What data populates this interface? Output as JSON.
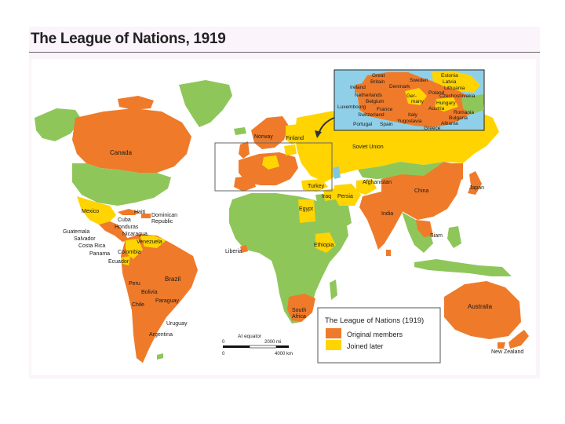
{
  "title": "The League of Nations, 1919",
  "colors": {
    "original": "#ef7a2a",
    "later": "#ffd400",
    "nonmember": "#8fc65a",
    "water": "#ffffff",
    "inset_water": "#8fd0e8",
    "caspian": "#7fc8e0"
  },
  "legend": {
    "title": "The League of Nations (1919)",
    "items": [
      {
        "label": "Original members",
        "color": "#ef7a2a"
      },
      {
        "label": "Joined later",
        "color": "#ffd400"
      }
    ]
  },
  "scale": {
    "note": "At equator",
    "mi_zero": "0",
    "mi_label": "2000 mi",
    "km_zero": "0",
    "km_label": "4000 km"
  },
  "labels": {
    "canada": "Canada",
    "mexico": "Mexico",
    "cuba": "Cuba",
    "haiti": "Haiti",
    "dominican_republic": "Dominican Republic",
    "honduras": "Honduras",
    "guatemala": "Guatemala",
    "salvador": "Salvador",
    "nicaragua": "Nicaragua",
    "costa_rica": "Costa Rica",
    "panama": "Panama",
    "venezuela": "Venezuela",
    "colombia": "Colombia",
    "ecuador": "Ecuador",
    "peru": "Peru",
    "brazil": "Brazil",
    "bolivia": "Bolivia",
    "paraguay": "Paraguay",
    "chile": "Chile",
    "uruguay": "Uruguay",
    "argentina": "Argentina",
    "liberia": "Liberia",
    "norway": "Norway",
    "finland": "Finland",
    "soviet_union": "Soviet Union",
    "turkey": "Turkey",
    "iraq": "Iraq",
    "persia": "Persia",
    "afghanistan": "Afghanistan",
    "egypt": "Egypt",
    "ethiopia": "Ethiopia",
    "south_africa": "South Africa",
    "india": "India",
    "china": "China",
    "japan": "Japan",
    "siam": "Siam",
    "australia": "Australia",
    "new_zealand": "New Zealand"
  },
  "inset_labels": {
    "great_britain": "Great Britain",
    "ireland": "Ireland",
    "denmark": "Denmark",
    "sweden": "Sweden",
    "estonia": "Estonia",
    "latvia": "Latvia",
    "lithuania": "Lithuania",
    "netherlands": "Netherlands",
    "belgium": "Belgium",
    "luxembourg": "Luxembourg",
    "france": "France",
    "switzerland": "Switzerland",
    "portugal": "Portugal",
    "spain": "Spain",
    "germany": "Germany",
    "poland": "Poland",
    "czechoslovakia": "Czechoslovakia",
    "hungary": "Hungary",
    "austria": "Austria",
    "italy": "Italy",
    "yugoslavia": "Yugoslavia",
    "romania": "Romania",
    "bulgaria": "Bulgaria",
    "albania": "Albania",
    "greece": "Greece"
  }
}
